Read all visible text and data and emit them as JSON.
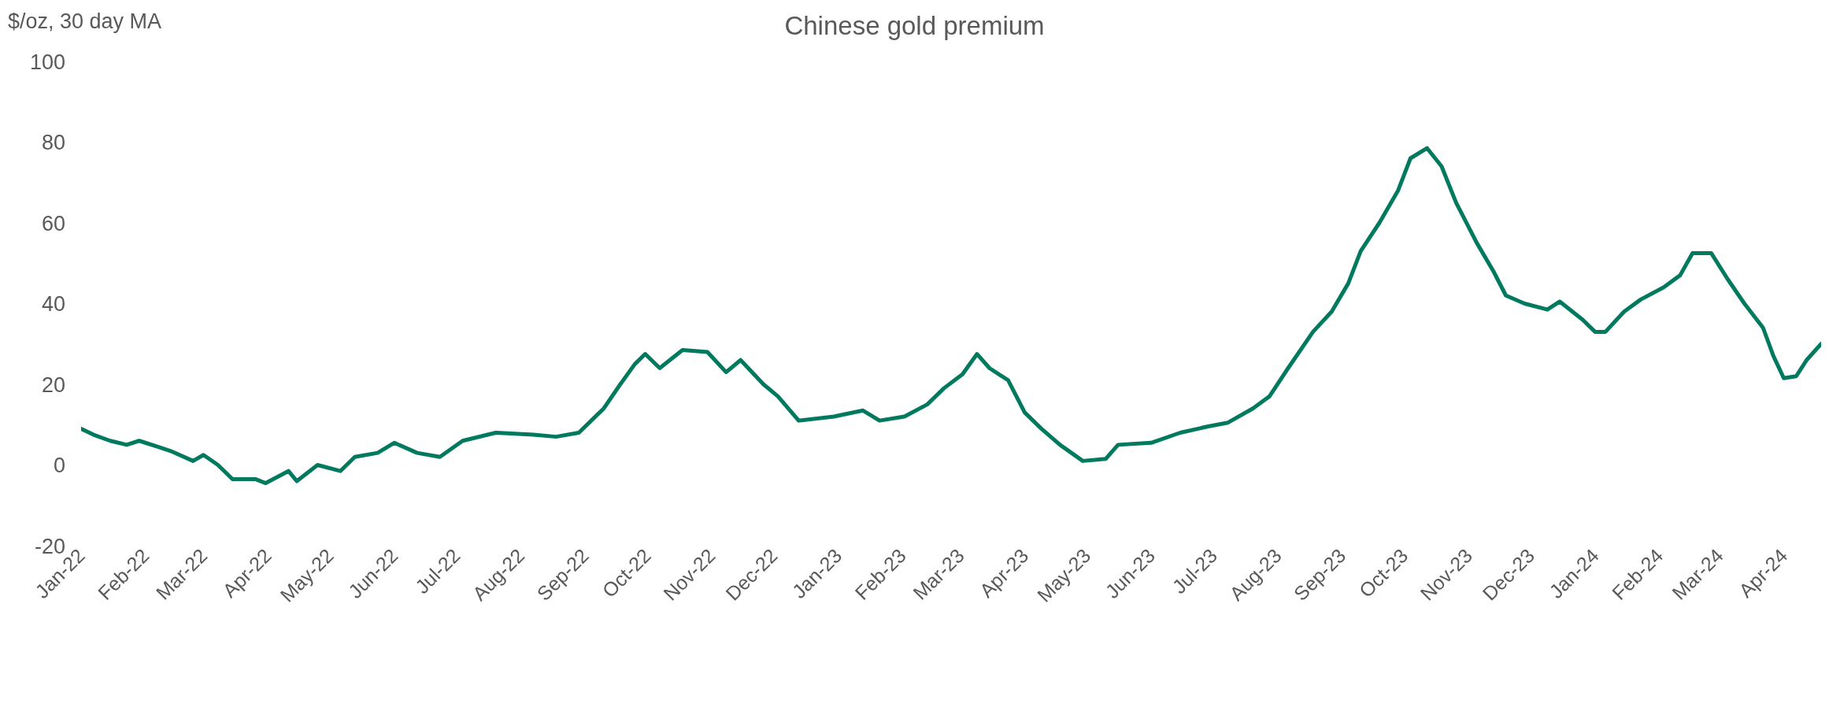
{
  "chart_data": {
    "type": "line",
    "title": "Chinese gold premium",
    "ylabel": "$/oz, 30 day MA",
    "x": [
      "2022-01-01",
      "2022-01-07",
      "2022-01-15",
      "2022-01-23",
      "2022-01-29",
      "2022-02-07",
      "2022-02-13",
      "2022-02-24",
      "2022-03-01",
      "2022-03-08",
      "2022-03-15",
      "2022-03-26",
      "2022-03-31",
      "2022-04-11",
      "2022-04-15",
      "2022-04-25",
      "2022-05-06",
      "2022-05-13",
      "2022-05-24",
      "2022-06-01",
      "2022-06-12",
      "2022-06-23",
      "2022-07-04",
      "2022-07-20",
      "2022-08-07",
      "2022-08-18",
      "2022-08-29",
      "2022-09-04",
      "2022-09-10",
      "2022-09-18",
      "2022-09-25",
      "2022-09-30",
      "2022-10-07",
      "2022-10-18",
      "2022-10-30",
      "2022-11-08",
      "2022-11-15",
      "2022-11-26",
      "2022-12-03",
      "2022-12-13",
      "2022-12-30",
      "2023-01-13",
      "2023-01-21",
      "2023-02-02",
      "2023-02-13",
      "2023-02-21",
      "2023-03-02",
      "2023-03-09",
      "2023-03-15",
      "2023-03-24",
      "2023-04-01",
      "2023-04-09",
      "2023-04-18",
      "2023-04-29",
      "2023-05-10",
      "2023-05-16",
      "2023-06-01",
      "2023-06-15",
      "2023-06-28",
      "2023-07-08",
      "2023-07-20",
      "2023-07-28",
      "2023-08-06",
      "2023-08-18",
      "2023-08-27",
      "2023-09-04",
      "2023-09-10",
      "2023-09-19",
      "2023-09-28",
      "2023-10-04",
      "2023-10-12",
      "2023-10-19",
      "2023-10-26",
      "2023-11-05",
      "2023-11-13",
      "2023-11-19",
      "2023-11-28",
      "2023-12-09",
      "2023-12-15",
      "2023-12-26",
      "2024-01-01",
      "2024-01-06",
      "2024-01-15",
      "2024-01-23",
      "2024-02-03",
      "2024-02-11",
      "2024-02-17",
      "2024-02-26",
      "2024-03-05",
      "2024-03-13",
      "2024-03-22",
      "2024-03-27",
      "2024-04-01",
      "2024-04-07",
      "2024-04-12",
      "2024-04-19"
    ],
    "series": [
      {
        "color": "#007a5e",
        "values": [
          9,
          7.5,
          6,
          5,
          6,
          4.5,
          3.5,
          1,
          2.5,
          0,
          -3.5,
          -3.5,
          -4.5,
          -1.5,
          -4,
          0,
          -1.5,
          2,
          3,
          5.5,
          3,
          2,
          6,
          8,
          7.5,
          7,
          8,
          11,
          14,
          20,
          25,
          27.5,
          24,
          28.5,
          28,
          23,
          26,
          20,
          17,
          11,
          12,
          13.5,
          11,
          12,
          15,
          19,
          22.5,
          27.5,
          24,
          21,
          13,
          9,
          5,
          1,
          1.5,
          5,
          5.5,
          8,
          9.5,
          10.5,
          14,
          17,
          24,
          33,
          38,
          45,
          53,
          60,
          68,
          76,
          78.5,
          74,
          65,
          55,
          48,
          42,
          40,
          38.5,
          40.5,
          36,
          33,
          33,
          38,
          41,
          44,
          47,
          52.5,
          52.5,
          46,
          40,
          34,
          27,
          21.5,
          22,
          26,
          30
        ]
      }
    ],
    "ylim": [
      -20,
      100
    ],
    "yticks": [
      -20,
      0,
      20,
      40,
      60,
      80,
      100
    ],
    "xlim": [
      "2022-01-01",
      "2024-04-19"
    ],
    "xticks": [
      {
        "value": "2022-01-01",
        "label": "Jan-22"
      },
      {
        "value": "2022-02-01",
        "label": "Feb-22"
      },
      {
        "value": "2022-03-01",
        "label": "Mar-22"
      },
      {
        "value": "2022-04-01",
        "label": "Apr-22"
      },
      {
        "value": "2022-05-01",
        "label": "May-22"
      },
      {
        "value": "2022-06-01",
        "label": "Jun-22"
      },
      {
        "value": "2022-07-01",
        "label": "Jul-22"
      },
      {
        "value": "2022-08-01",
        "label": "Aug-22"
      },
      {
        "value": "2022-09-01",
        "label": "Sep-22"
      },
      {
        "value": "2022-10-01",
        "label": "Oct-22"
      },
      {
        "value": "2022-11-01",
        "label": "Nov-22"
      },
      {
        "value": "2022-12-01",
        "label": "Dec-22"
      },
      {
        "value": "2023-01-01",
        "label": "Jan-23"
      },
      {
        "value": "2023-02-01",
        "label": "Feb-23"
      },
      {
        "value": "2023-03-01",
        "label": "Mar-23"
      },
      {
        "value": "2023-04-01",
        "label": "Apr-23"
      },
      {
        "value": "2023-05-01",
        "label": "May-23"
      },
      {
        "value": "2023-06-01",
        "label": "Jun-23"
      },
      {
        "value": "2023-07-01",
        "label": "Jul-23"
      },
      {
        "value": "2023-08-01",
        "label": "Aug-23"
      },
      {
        "value": "2023-09-01",
        "label": "Sep-23"
      },
      {
        "value": "2023-10-01",
        "label": "Oct-23"
      },
      {
        "value": "2023-11-01",
        "label": "Nov-23"
      },
      {
        "value": "2023-12-01",
        "label": "Dec-23"
      },
      {
        "value": "2024-01-01",
        "label": "Jan-24"
      },
      {
        "value": "2024-02-01",
        "label": "Feb-24"
      },
      {
        "value": "2024-03-01",
        "label": "Mar-24"
      },
      {
        "value": "2024-04-01",
        "label": "Apr-24"
      }
    ],
    "grid": false,
    "legend": false,
    "marker": "none",
    "line_style": "solid"
  }
}
